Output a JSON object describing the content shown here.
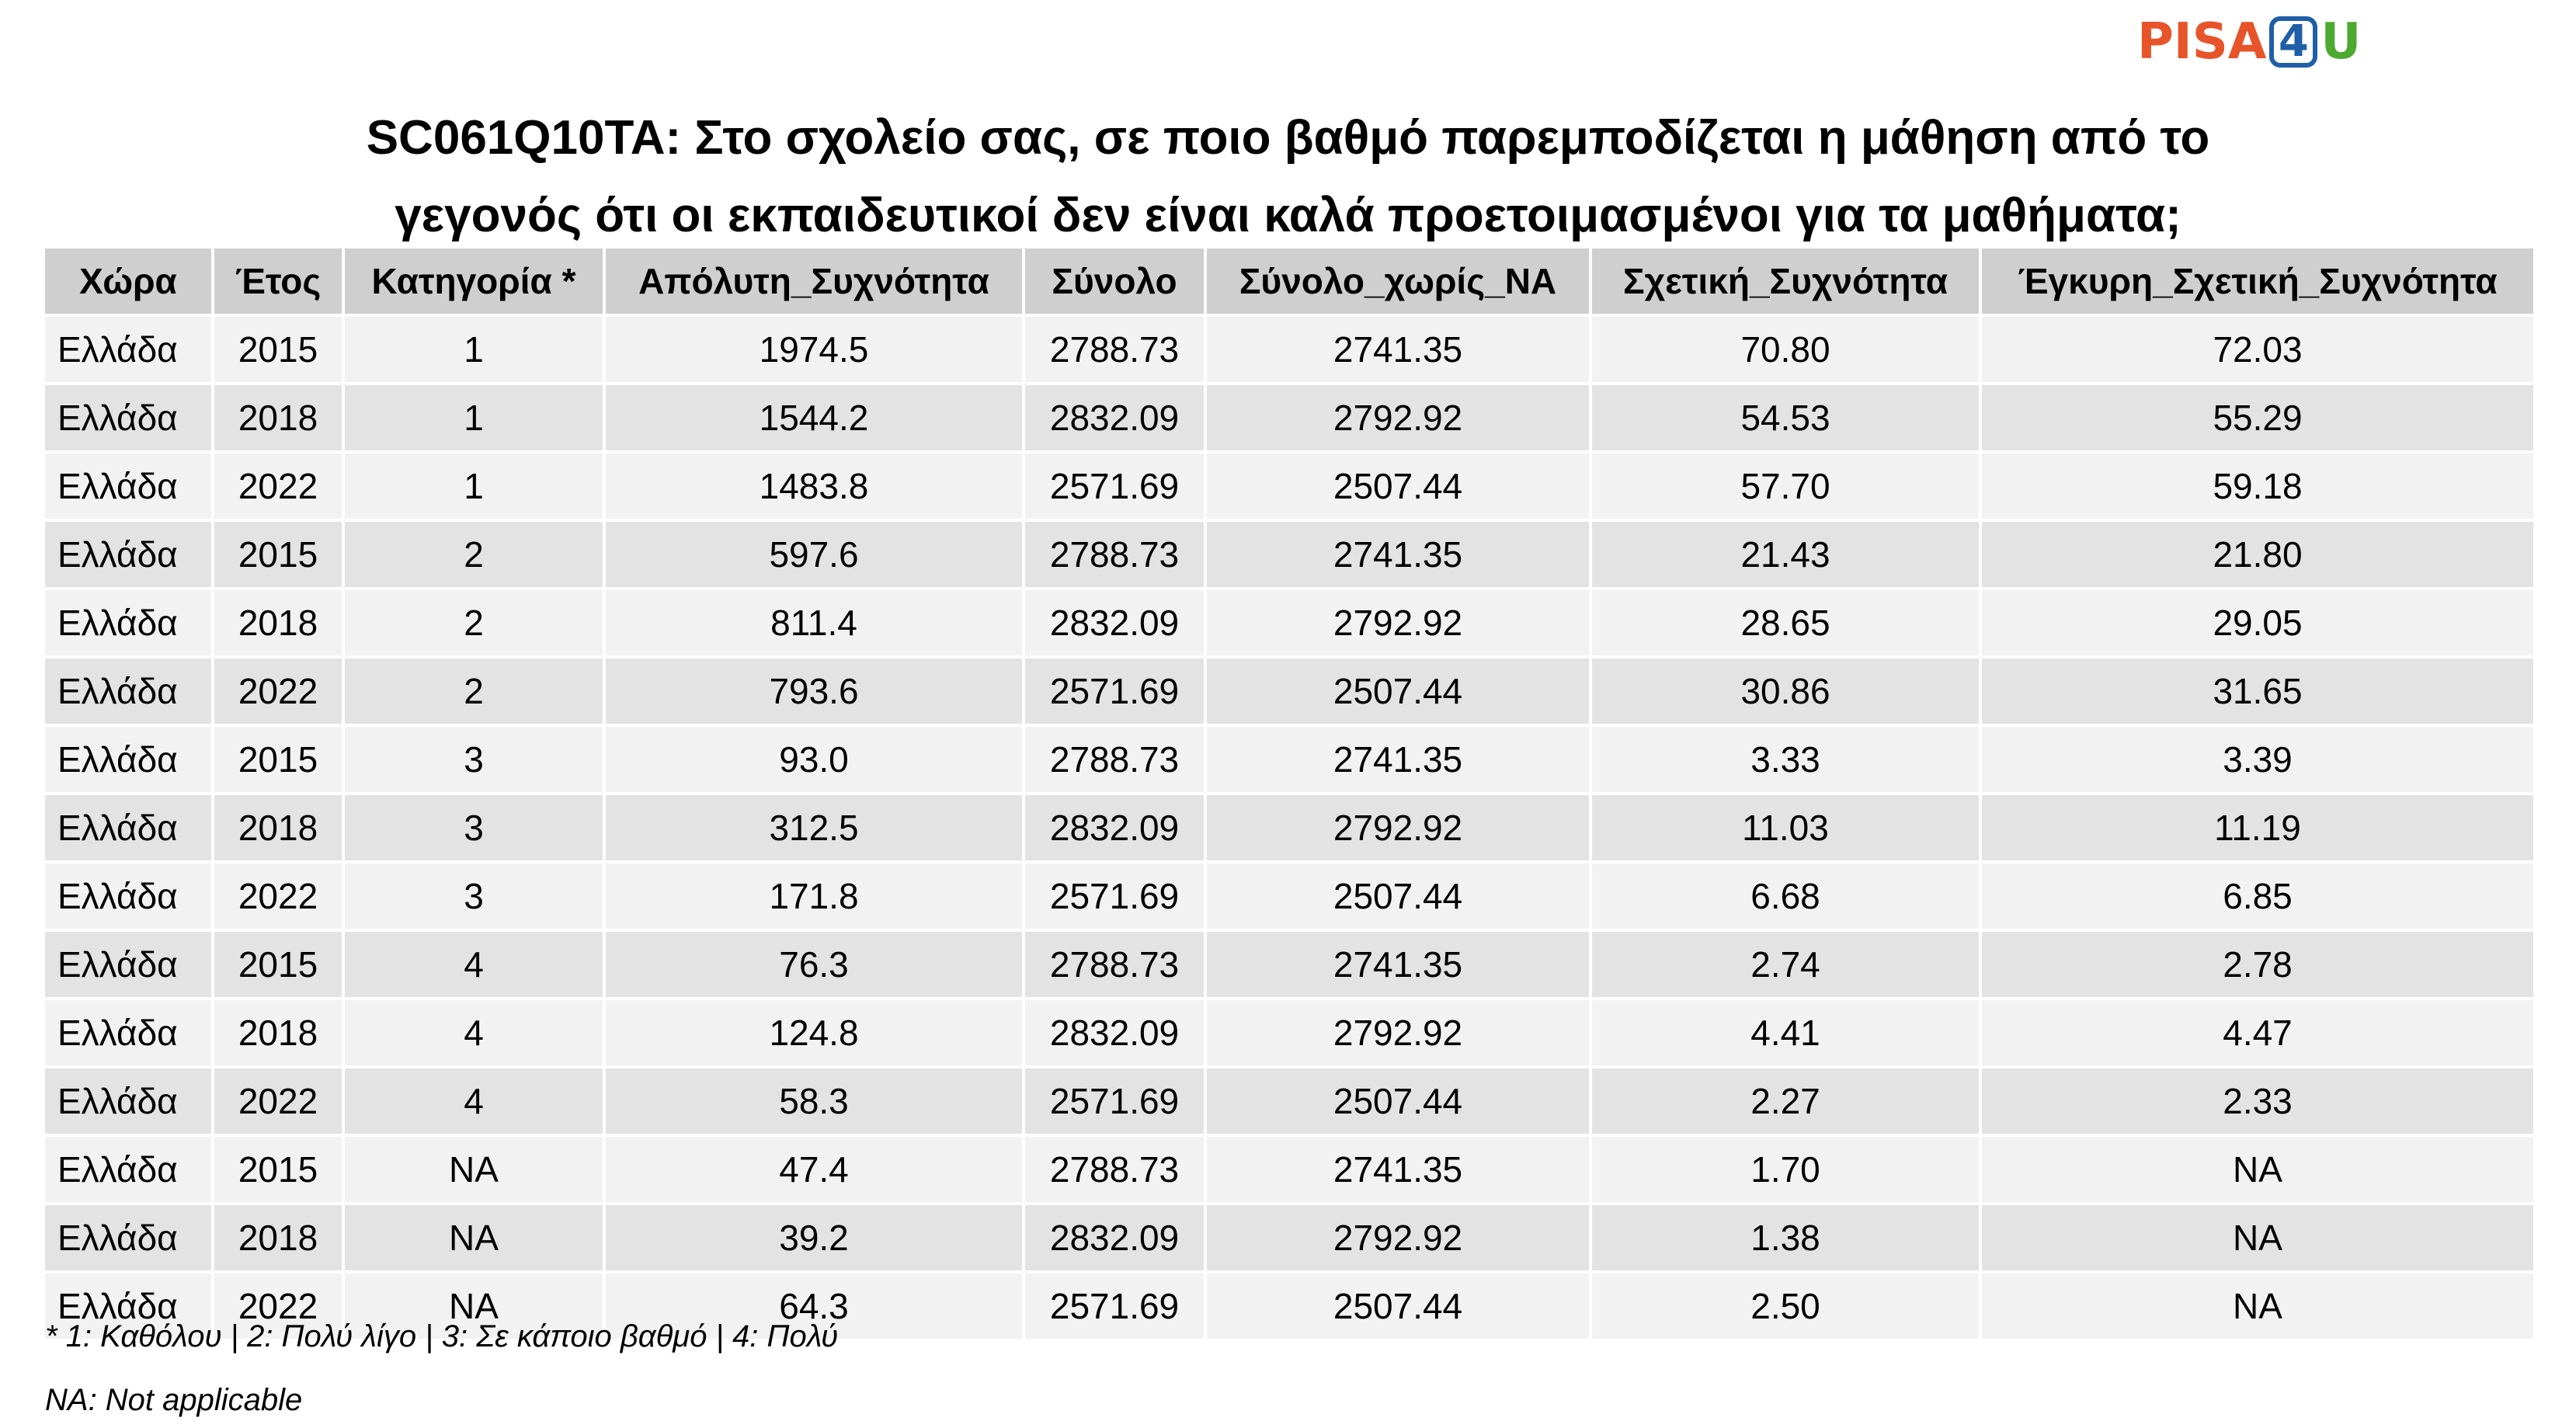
{
  "logo": {
    "pisa": "PISA",
    "four": "4",
    "u": "U",
    "colors": {
      "pisa": "#e8542a",
      "four": "#1f5fa8",
      "u": "#4caa2f"
    }
  },
  "title": {
    "line1": "SC061Q10TA: Στο σχολείο σας, σε ποιο βαθμό παρεμποδίζεται η μάθηση από το",
    "line2": "γεγονός ότι οι εκπαιδευτικοί δεν είναι καλά προετοιμασμένοι για τα μαθήματα;"
  },
  "table": {
    "headers": [
      "Χώρα",
      "Έτος",
      "Κατηγορία *",
      "Απόλυτη_Συχνότητα",
      "Σύνολο",
      "Σύνολο_χωρίς_NA",
      "Σχετική_Συχνότητα",
      "Έγκυρη_Σχετική_Συχνότητα"
    ],
    "rows": [
      [
        "Ελλάδα",
        "2015",
        "1",
        "1974.5",
        "2788.73",
        "2741.35",
        "70.80",
        "72.03"
      ],
      [
        "Ελλάδα",
        "2018",
        "1",
        "1544.2",
        "2832.09",
        "2792.92",
        "54.53",
        "55.29"
      ],
      [
        "Ελλάδα",
        "2022",
        "1",
        "1483.8",
        "2571.69",
        "2507.44",
        "57.70",
        "59.18"
      ],
      [
        "Ελλάδα",
        "2015",
        "2",
        "597.6",
        "2788.73",
        "2741.35",
        "21.43",
        "21.80"
      ],
      [
        "Ελλάδα",
        "2018",
        "2",
        "811.4",
        "2832.09",
        "2792.92",
        "28.65",
        "29.05"
      ],
      [
        "Ελλάδα",
        "2022",
        "2",
        "793.6",
        "2571.69",
        "2507.44",
        "30.86",
        "31.65"
      ],
      [
        "Ελλάδα",
        "2015",
        "3",
        "93.0",
        "2788.73",
        "2741.35",
        "3.33",
        "3.39"
      ],
      [
        "Ελλάδα",
        "2018",
        "3",
        "312.5",
        "2832.09",
        "2792.92",
        "11.03",
        "11.19"
      ],
      [
        "Ελλάδα",
        "2022",
        "3",
        "171.8",
        "2571.69",
        "2507.44",
        "6.68",
        "6.85"
      ],
      [
        "Ελλάδα",
        "2015",
        "4",
        "76.3",
        "2788.73",
        "2741.35",
        "2.74",
        "2.78"
      ],
      [
        "Ελλάδα",
        "2018",
        "4",
        "124.8",
        "2832.09",
        "2792.92",
        "4.41",
        "4.47"
      ],
      [
        "Ελλάδα",
        "2022",
        "4",
        "58.3",
        "2571.69",
        "2507.44",
        "2.27",
        "2.33"
      ],
      [
        "Ελλάδα",
        "2015",
        "NA",
        "47.4",
        "2788.73",
        "2741.35",
        "1.70",
        "NA"
      ],
      [
        "Ελλάδα",
        "2018",
        "NA",
        "39.2",
        "2832.09",
        "2792.92",
        "1.38",
        "NA"
      ],
      [
        "Ελλάδα",
        "2022",
        "NA",
        "64.3",
        "2571.69",
        "2507.44",
        "2.50",
        "NA"
      ]
    ]
  },
  "notes": {
    "legend": "* 1: Καθόλου | 2: Πολύ λίγο | 3: Σε κάποιο βαθμό | 4: Πολύ",
    "na": "NA: Not applicable"
  }
}
